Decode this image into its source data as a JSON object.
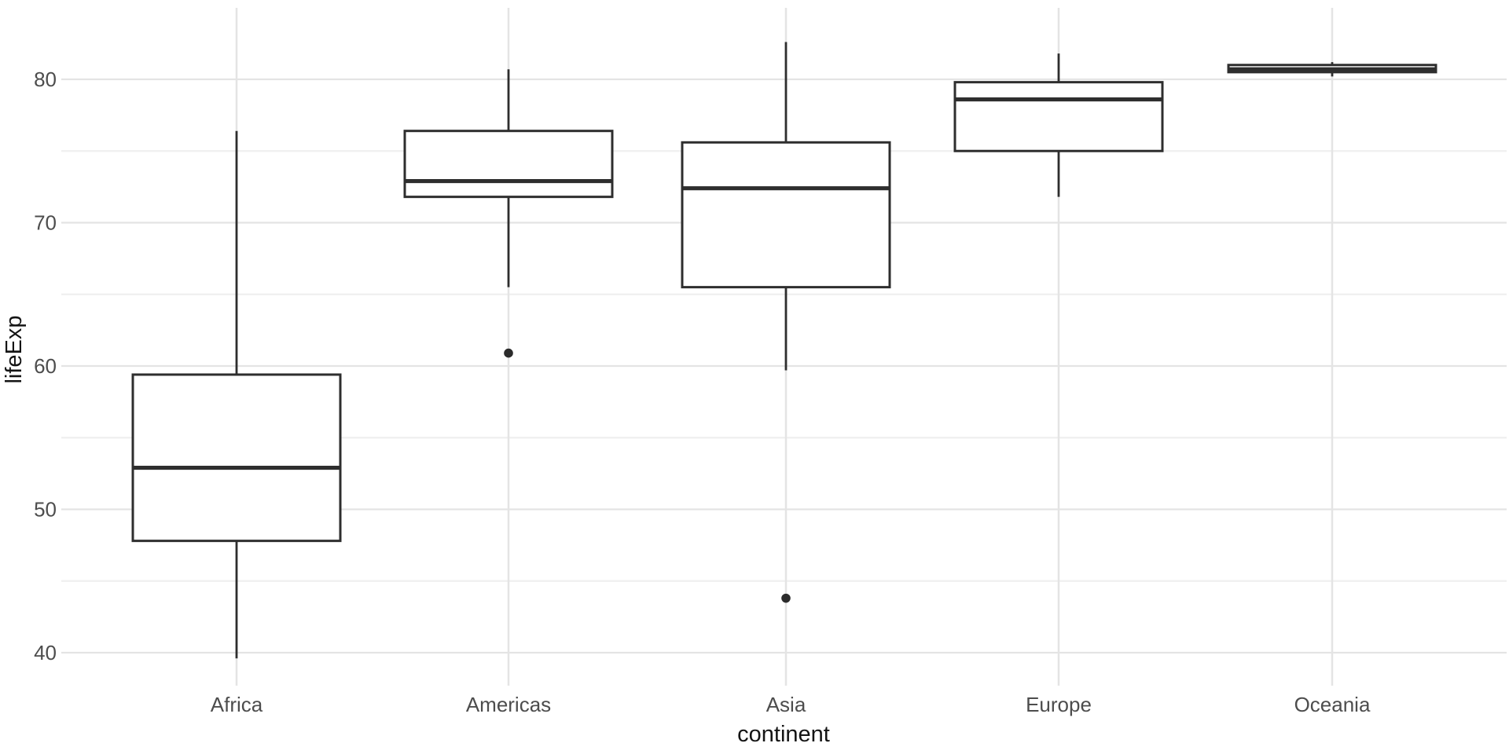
{
  "chart_data": {
    "type": "boxplot",
    "title": "",
    "xlabel": "continent",
    "ylabel": "lifeExp",
    "categories": [
      "Africa",
      "Americas",
      "Asia",
      "Europe",
      "Oceania"
    ],
    "y_ticks": [
      40,
      50,
      60,
      70,
      80
    ],
    "y_minor_ticks": [
      45,
      55,
      65,
      75
    ],
    "ylim": [
      37.4,
      84.8
    ],
    "grid": true,
    "legend": "none",
    "series": [
      {
        "category": "Africa",
        "whisker_low": 39.6,
        "q1": 47.8,
        "median": 52.9,
        "q3": 59.4,
        "whisker_high": 76.4,
        "outliers": []
      },
      {
        "category": "Americas",
        "whisker_low": 65.5,
        "q1": 71.8,
        "median": 72.9,
        "q3": 76.4,
        "whisker_high": 80.7,
        "outliers": [
          60.9
        ]
      },
      {
        "category": "Asia",
        "whisker_low": 59.7,
        "q1": 65.5,
        "median": 72.4,
        "q3": 75.6,
        "whisker_high": 82.6,
        "outliers": [
          43.8
        ]
      },
      {
        "category": "Europe",
        "whisker_low": 71.8,
        "q1": 75.0,
        "median": 78.6,
        "q3": 79.8,
        "whisker_high": 81.8,
        "outliers": []
      },
      {
        "category": "Oceania",
        "whisker_low": 80.2,
        "q1": 80.5,
        "median": 80.7,
        "q3": 81.0,
        "whisker_high": 81.2,
        "outliers": []
      }
    ],
    "style": {
      "background": "#ffffff",
      "box_stroke": "#2e2e2e",
      "box_fill": "#ffffff",
      "median_stroke": "#2e2e2e",
      "whisker_stroke": "#2e2e2e",
      "outlier_fill": "#2b2b2b",
      "grid_major": "#e4e4e4",
      "grid_minor": "#efefef",
      "tick_label_color": "#4d4d4d",
      "axis_title_color": "#141414"
    }
  }
}
